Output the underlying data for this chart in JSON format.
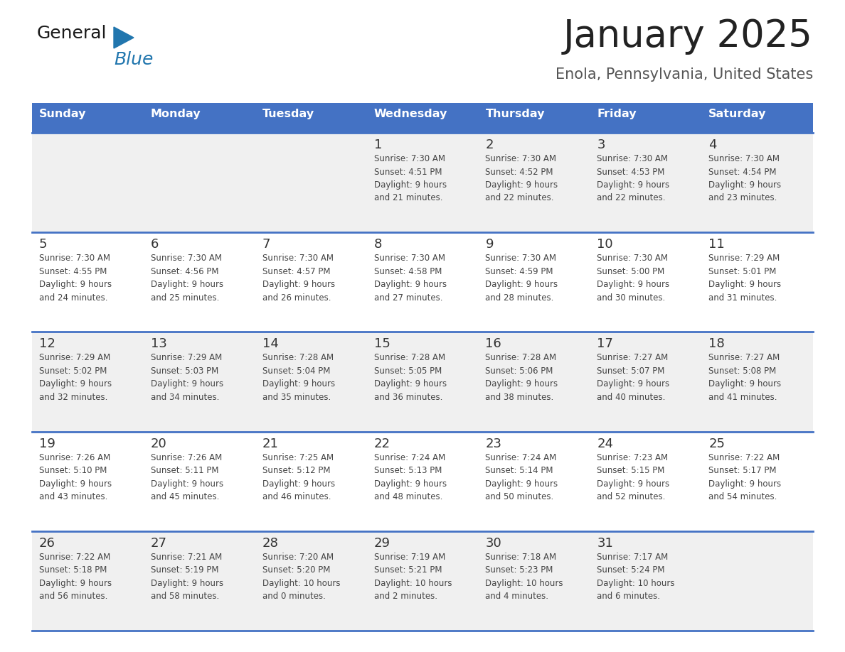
{
  "title": "January 2025",
  "subtitle": "Enola, Pennsylvania, United States",
  "days_of_week": [
    "Sunday",
    "Monday",
    "Tuesday",
    "Wednesday",
    "Thursday",
    "Friday",
    "Saturday"
  ],
  "header_bg": "#4472C4",
  "header_text_color": "#FFFFFF",
  "cell_bg_light": "#F0F0F0",
  "cell_bg_white": "#FFFFFF",
  "cell_text_color": "#444444",
  "day_num_color": "#333333",
  "separator_color": "#4472C4",
  "title_color": "#222222",
  "subtitle_color": "#555555",
  "logo_general_color": "#1a1a1a",
  "logo_blue_color": "#2176AE",
  "weeks": [
    [
      {
        "day": 0,
        "info": ""
      },
      {
        "day": 0,
        "info": ""
      },
      {
        "day": 0,
        "info": ""
      },
      {
        "day": 1,
        "info": "Sunrise: 7:30 AM\nSunset: 4:51 PM\nDaylight: 9 hours\nand 21 minutes."
      },
      {
        "day": 2,
        "info": "Sunrise: 7:30 AM\nSunset: 4:52 PM\nDaylight: 9 hours\nand 22 minutes."
      },
      {
        "day": 3,
        "info": "Sunrise: 7:30 AM\nSunset: 4:53 PM\nDaylight: 9 hours\nand 22 minutes."
      },
      {
        "day": 4,
        "info": "Sunrise: 7:30 AM\nSunset: 4:54 PM\nDaylight: 9 hours\nand 23 minutes."
      }
    ],
    [
      {
        "day": 5,
        "info": "Sunrise: 7:30 AM\nSunset: 4:55 PM\nDaylight: 9 hours\nand 24 minutes."
      },
      {
        "day": 6,
        "info": "Sunrise: 7:30 AM\nSunset: 4:56 PM\nDaylight: 9 hours\nand 25 minutes."
      },
      {
        "day": 7,
        "info": "Sunrise: 7:30 AM\nSunset: 4:57 PM\nDaylight: 9 hours\nand 26 minutes."
      },
      {
        "day": 8,
        "info": "Sunrise: 7:30 AM\nSunset: 4:58 PM\nDaylight: 9 hours\nand 27 minutes."
      },
      {
        "day": 9,
        "info": "Sunrise: 7:30 AM\nSunset: 4:59 PM\nDaylight: 9 hours\nand 28 minutes."
      },
      {
        "day": 10,
        "info": "Sunrise: 7:30 AM\nSunset: 5:00 PM\nDaylight: 9 hours\nand 30 minutes."
      },
      {
        "day": 11,
        "info": "Sunrise: 7:29 AM\nSunset: 5:01 PM\nDaylight: 9 hours\nand 31 minutes."
      }
    ],
    [
      {
        "day": 12,
        "info": "Sunrise: 7:29 AM\nSunset: 5:02 PM\nDaylight: 9 hours\nand 32 minutes."
      },
      {
        "day": 13,
        "info": "Sunrise: 7:29 AM\nSunset: 5:03 PM\nDaylight: 9 hours\nand 34 minutes."
      },
      {
        "day": 14,
        "info": "Sunrise: 7:28 AM\nSunset: 5:04 PM\nDaylight: 9 hours\nand 35 minutes."
      },
      {
        "day": 15,
        "info": "Sunrise: 7:28 AM\nSunset: 5:05 PM\nDaylight: 9 hours\nand 36 minutes."
      },
      {
        "day": 16,
        "info": "Sunrise: 7:28 AM\nSunset: 5:06 PM\nDaylight: 9 hours\nand 38 minutes."
      },
      {
        "day": 17,
        "info": "Sunrise: 7:27 AM\nSunset: 5:07 PM\nDaylight: 9 hours\nand 40 minutes."
      },
      {
        "day": 18,
        "info": "Sunrise: 7:27 AM\nSunset: 5:08 PM\nDaylight: 9 hours\nand 41 minutes."
      }
    ],
    [
      {
        "day": 19,
        "info": "Sunrise: 7:26 AM\nSunset: 5:10 PM\nDaylight: 9 hours\nand 43 minutes."
      },
      {
        "day": 20,
        "info": "Sunrise: 7:26 AM\nSunset: 5:11 PM\nDaylight: 9 hours\nand 45 minutes."
      },
      {
        "day": 21,
        "info": "Sunrise: 7:25 AM\nSunset: 5:12 PM\nDaylight: 9 hours\nand 46 minutes."
      },
      {
        "day": 22,
        "info": "Sunrise: 7:24 AM\nSunset: 5:13 PM\nDaylight: 9 hours\nand 48 minutes."
      },
      {
        "day": 23,
        "info": "Sunrise: 7:24 AM\nSunset: 5:14 PM\nDaylight: 9 hours\nand 50 minutes."
      },
      {
        "day": 24,
        "info": "Sunrise: 7:23 AM\nSunset: 5:15 PM\nDaylight: 9 hours\nand 52 minutes."
      },
      {
        "day": 25,
        "info": "Sunrise: 7:22 AM\nSunset: 5:17 PM\nDaylight: 9 hours\nand 54 minutes."
      }
    ],
    [
      {
        "day": 26,
        "info": "Sunrise: 7:22 AM\nSunset: 5:18 PM\nDaylight: 9 hours\nand 56 minutes."
      },
      {
        "day": 27,
        "info": "Sunrise: 7:21 AM\nSunset: 5:19 PM\nDaylight: 9 hours\nand 58 minutes."
      },
      {
        "day": 28,
        "info": "Sunrise: 7:20 AM\nSunset: 5:20 PM\nDaylight: 10 hours\nand 0 minutes."
      },
      {
        "day": 29,
        "info": "Sunrise: 7:19 AM\nSunset: 5:21 PM\nDaylight: 10 hours\nand 2 minutes."
      },
      {
        "day": 30,
        "info": "Sunrise: 7:18 AM\nSunset: 5:23 PM\nDaylight: 10 hours\nand 4 minutes."
      },
      {
        "day": 31,
        "info": "Sunrise: 7:17 AM\nSunset: 5:24 PM\nDaylight: 10 hours\nand 6 minutes."
      },
      {
        "day": 0,
        "info": ""
      }
    ]
  ],
  "figsize": [
    11.88,
    9.18
  ],
  "dpi": 100
}
